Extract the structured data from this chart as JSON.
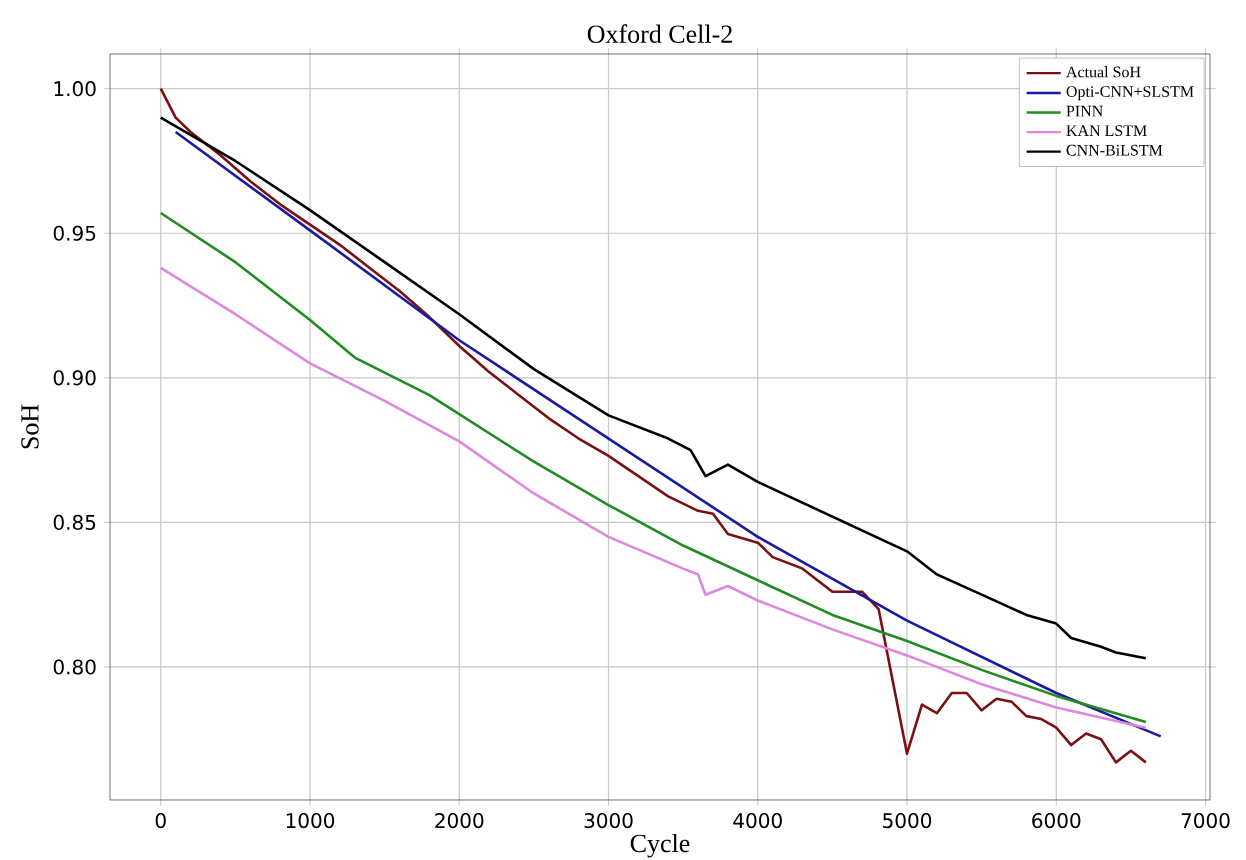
{
  "chart_data": {
    "type": "line",
    "title": "Oxford Cell-2",
    "xlabel": "Cycle",
    "ylabel": "SoH",
    "xlim": [
      -340,
      7030
    ],
    "ylim": [
      0.754,
      1.012
    ],
    "xticks": [
      0,
      1000,
      2000,
      3000,
      4000,
      5000,
      6000,
      7000
    ],
    "yticks": [
      {
        "value": 0.8,
        "label": "0.80"
      },
      {
        "value": 0.85,
        "label": "0.85"
      },
      {
        "value": 0.9,
        "label": "0.90"
      },
      {
        "value": 0.95,
        "label": "0.95"
      },
      {
        "value": 1.0,
        "label": "1.00"
      }
    ],
    "grid": true,
    "legend": "top right",
    "marker": "none",
    "line_style": "solid",
    "series": [
      {
        "name": "Actual SoH",
        "color": "#7b1010",
        "x": [
          0,
          100,
          200,
          400,
          600,
          800,
          1000,
          1200,
          1400,
          1600,
          1800,
          2000,
          2200,
          2400,
          2600,
          2800,
          3000,
          3200,
          3400,
          3600,
          3700,
          3800,
          4000,
          4100,
          4300,
          4500,
          4700,
          4810,
          5000,
          5100,
          5200,
          5300,
          5400,
          5500,
          5600,
          5700,
          5800,
          5900,
          6000,
          6100,
          6200,
          6300,
          6400,
          6500,
          6600
        ],
        "values": [
          1.0,
          0.99,
          0.985,
          0.977,
          0.968,
          0.96,
          0.953,
          0.946,
          0.938,
          0.93,
          0.921,
          0.911,
          0.902,
          0.894,
          0.886,
          0.879,
          0.873,
          0.866,
          0.859,
          0.854,
          0.853,
          0.846,
          0.843,
          0.838,
          0.834,
          0.826,
          0.826,
          0.82,
          0.77,
          0.787,
          0.784,
          0.791,
          0.791,
          0.785,
          0.789,
          0.788,
          0.783,
          0.782,
          0.779,
          0.773,
          0.777,
          0.775,
          0.767,
          0.771,
          0.767
        ]
      },
      {
        "name": "Opti-CNN+SLSTM",
        "color": "#1a1aa0",
        "x": [
          100,
          1000,
          2000,
          3000,
          4000,
          5000,
          6000,
          6700
        ],
        "values": [
          0.985,
          0.951,
          0.913,
          0.879,
          0.845,
          0.816,
          0.791,
          0.776
        ]
      },
      {
        "name": "PINN",
        "color": "#228b22",
        "x": [
          0,
          500,
          1000,
          1300,
          1800,
          2500,
          3000,
          3500,
          4000,
          4500,
          5000,
          5500,
          6000,
          6600
        ],
        "values": [
          0.957,
          0.94,
          0.92,
          0.907,
          0.894,
          0.871,
          0.856,
          0.842,
          0.83,
          0.818,
          0.809,
          0.799,
          0.79,
          0.781
        ]
      },
      {
        "name": "KAN LSTM",
        "color": "#dd88dd",
        "x": [
          0,
          500,
          1000,
          1500,
          2000,
          2500,
          3000,
          3500,
          3600,
          3650,
          3800,
          4000,
          4500,
          5000,
          5500,
          6000,
          6600
        ],
        "values": [
          0.938,
          0.922,
          0.905,
          0.892,
          0.878,
          0.86,
          0.845,
          0.834,
          0.832,
          0.825,
          0.828,
          0.823,
          0.813,
          0.804,
          0.794,
          0.786,
          0.779
        ]
      },
      {
        "name": "CNN-BiLSTM",
        "color": "#000000",
        "x": [
          0,
          500,
          1000,
          1500,
          2000,
          2500,
          3000,
          3400,
          3550,
          3650,
          3800,
          4000,
          4500,
          5000,
          5200,
          5500,
          5800,
          6000,
          6100,
          6300,
          6400,
          6600
        ],
        "values": [
          0.99,
          0.975,
          0.958,
          0.94,
          0.922,
          0.903,
          0.887,
          0.879,
          0.875,
          0.866,
          0.87,
          0.864,
          0.852,
          0.84,
          0.832,
          0.825,
          0.818,
          0.815,
          0.81,
          0.807,
          0.805,
          0.803
        ]
      }
    ]
  }
}
